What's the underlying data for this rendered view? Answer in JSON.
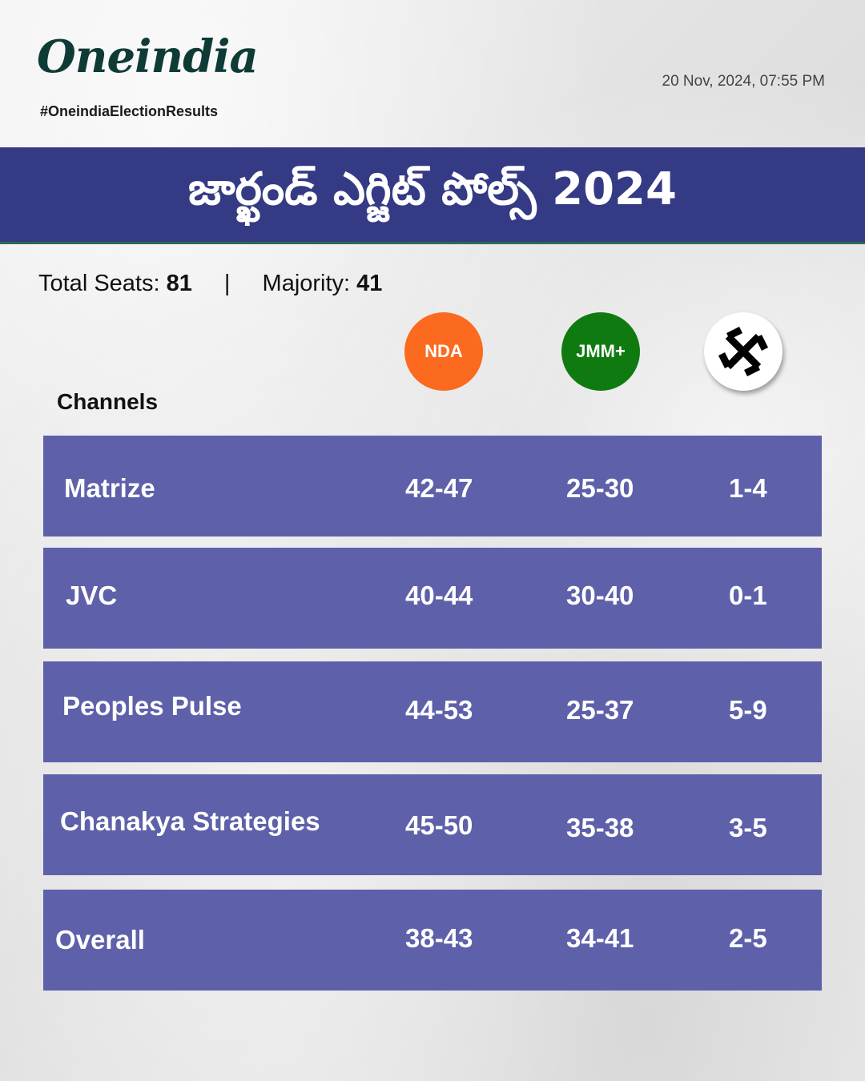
{
  "header": {
    "logo_text": "Oneindia",
    "hashtag": "#OneindiaElectionResults",
    "timestamp": "20 Nov, 2024, 07:55 PM"
  },
  "banner": {
    "title": "జార్ఖండ్ ఎగ్జిట్ పోల్స్ 2024"
  },
  "summary": {
    "total_label": "Total Seats:",
    "total_value": "81",
    "separator": "|",
    "majority_label": "Majority:",
    "majority_value": "41"
  },
  "columns": {
    "channels_heading": "Channels",
    "nda": "NDA",
    "jmm": "JMM+",
    "others_icon": "others-symbol-icon"
  },
  "colors": {
    "banner": "#353a85",
    "row": "#5e60aa",
    "nda": "#fb6a1e",
    "jmm": "#0f7a10"
  },
  "rows": [
    {
      "channel": "Matrize",
      "nda": "42-47",
      "jmm": "25-30",
      "others": "1-4"
    },
    {
      "channel": "JVC",
      "nda": "40-44",
      "jmm": "30-40",
      "others": "0-1"
    },
    {
      "channel": "Peoples Pulse",
      "nda": "44-53",
      "jmm": "25-37",
      "others": "5-9"
    },
    {
      "channel": "Chanakya Strategies",
      "nda": "45-50",
      "jmm": "35-38",
      "others": "3-5"
    },
    {
      "channel": "Overall",
      "nda": "38-43",
      "jmm": "34-41",
      "others": "2-5"
    }
  ]
}
